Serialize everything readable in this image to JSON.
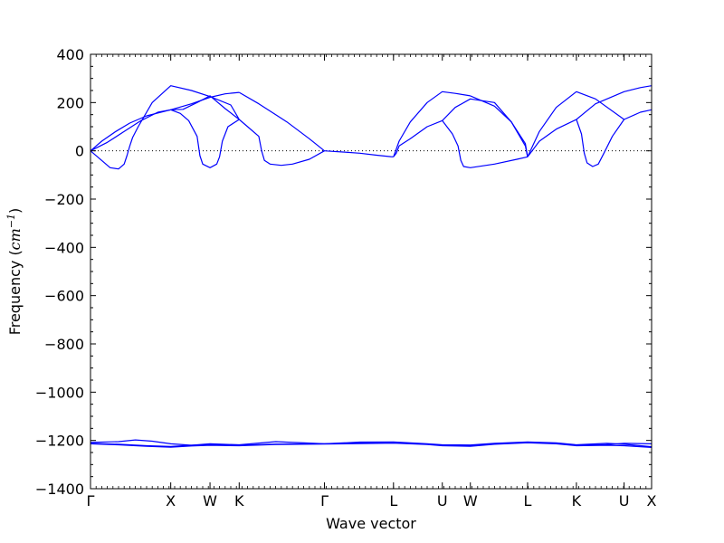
{
  "chart_data": {
    "type": "line",
    "title": "",
    "xlabel": "Wave vector",
    "ylabel": {
      "prefix": "Frequency (",
      "unit": "cm",
      "exponent": "−1",
      "suffix": ")"
    },
    "ylim": [
      -1400,
      400
    ],
    "yticks": [
      400,
      200,
      0,
      -200,
      -400,
      -600,
      -800,
      -1000,
      -1200,
      -1400
    ],
    "ytick_labels": [
      "400",
      "200",
      "0",
      "−200",
      "−400",
      "−600",
      "−800",
      "−1000",
      "−1200",
      "−1400"
    ],
    "xlim": [
      0,
      1
    ],
    "xticks": [
      {
        "label": "Γ",
        "x": 0.0
      },
      {
        "label": "X",
        "x": 0.143
      },
      {
        "label": "W",
        "x": 0.213
      },
      {
        "label": "K",
        "x": 0.265
      },
      {
        "label": "Γ",
        "x": 0.417
      },
      {
        "label": "L",
        "x": 0.54
      },
      {
        "label": "U",
        "x": 0.627
      },
      {
        "label": "W",
        "x": 0.677
      },
      {
        "label": "L",
        "x": 0.779
      },
      {
        "label": "K",
        "x": 0.866
      },
      {
        "label": "U",
        "x": 0.951
      },
      {
        "label": "X",
        "x": 1.0
      }
    ],
    "zero_line": {
      "y": 0,
      "style": "dotted"
    },
    "line_color": "#0000ff",
    "series": [
      {
        "x": [
          0,
          0.02,
          0.045,
          0.07,
          0.1,
          0.143,
          0.18,
          0.213,
          0.24,
          0.265
        ],
        "y": [
          0,
          40,
          80,
          115,
          145,
          170,
          195,
          222,
          236,
          242
        ]
      },
      {
        "x": [
          0.265,
          0.3,
          0.35,
          0.39,
          0.417
        ],
        "y": [
          242,
          195,
          120,
          50,
          0
        ]
      },
      {
        "x": [
          0,
          0.03,
          0.06,
          0.09,
          0.12,
          0.143,
          0.165,
          0.19,
          0.213,
          0.24,
          0.265
        ],
        "y": [
          0,
          35,
          80,
          125,
          160,
          170,
          172,
          200,
          228,
          175,
          130
        ]
      },
      {
        "x": [
          0,
          0.02,
          0.035,
          0.05,
          0.06,
          0.065,
          0.07,
          0.075,
          0.085,
          0.11,
          0.143,
          0.18,
          0.213,
          0.25,
          0.265
        ],
        "y": [
          0,
          -40,
          -70,
          -75,
          -55,
          -20,
          20,
          55,
          100,
          200,
          270,
          250,
          225,
          190,
          130
        ]
      },
      {
        "x": [
          0.143,
          0.16,
          0.175,
          0.19,
          0.195,
          0.2,
          0.213,
          0.225,
          0.23,
          0.235,
          0.245,
          0.265
        ],
        "y": [
          170,
          155,
          125,
          60,
          -20,
          -55,
          -70,
          -55,
          -25,
          40,
          100,
          130
        ]
      },
      {
        "x": [
          0.265,
          0.28,
          0.3,
          0.305,
          0.31,
          0.32,
          0.34,
          0.36,
          0.39,
          0.417
        ],
        "y": [
          130,
          100,
          60,
          0,
          -40,
          -55,
          -60,
          -55,
          -35,
          0
        ]
      },
      {
        "x": [
          0.417,
          0.45,
          0.48,
          0.51,
          0.535,
          0.54
        ],
        "y": [
          0,
          -5,
          -10,
          -18,
          -24,
          -25
        ]
      },
      {
        "x": [
          0.54,
          0.545,
          0.55,
          0.57,
          0.6,
          0.627,
          0.65,
          0.677,
          0.72,
          0.75,
          0.775,
          0.779
        ],
        "y": [
          -25,
          -10,
          20,
          50,
          100,
          125,
          180,
          215,
          200,
          120,
          20,
          -25
        ]
      },
      {
        "x": [
          0.54,
          0.55,
          0.57,
          0.6,
          0.627,
          0.65,
          0.677
        ],
        "y": [
          -25,
          40,
          120,
          200,
          245,
          238,
          228
        ]
      },
      {
        "x": [
          0.627,
          0.645,
          0.655,
          0.66,
          0.665,
          0.677,
          0.72,
          0.76,
          0.779
        ],
        "y": [
          125,
          70,
          20,
          -40,
          -65,
          -70,
          -55,
          -35,
          -25
        ]
      },
      {
        "x": [
          0.677,
          0.72,
          0.75,
          0.775,
          0.779
        ],
        "y": [
          228,
          185,
          120,
          30,
          -25
        ]
      },
      {
        "x": [
          0.779,
          0.8,
          0.83,
          0.866,
          0.9,
          0.951,
          0.98,
          1.0
        ],
        "y": [
          -25,
          80,
          180,
          245,
          215,
          130,
          160,
          170
        ]
      },
      {
        "x": [
          0.779,
          0.8,
          0.83,
          0.866,
          0.9,
          0.951,
          0.98,
          1.0
        ],
        "y": [
          -25,
          40,
          90,
          130,
          195,
          245,
          262,
          270
        ]
      },
      {
        "x": [
          0.866,
          0.875,
          0.88,
          0.885,
          0.895,
          0.905,
          0.915,
          0.93,
          0.951
        ],
        "y": [
          130,
          70,
          -10,
          -50,
          -65,
          -55,
          -10,
          60,
          130
        ]
      },
      {
        "x": [
          0,
          0.05,
          0.08,
          0.11,
          0.143,
          0.18,
          0.213,
          0.265,
          0.33,
          0.417,
          0.48,
          0.54,
          0.6,
          0.627,
          0.677,
          0.72,
          0.779,
          0.83,
          0.866,
          0.92,
          0.951,
          1.0
        ],
        "y": [
          -1208,
          -1205,
          -1198,
          -1203,
          -1214,
          -1220,
          -1214,
          -1218,
          -1205,
          -1214,
          -1207,
          -1206,
          -1214,
          -1218,
          -1219,
          -1212,
          -1206,
          -1210,
          -1218,
          -1212,
          -1216,
          -1226
        ]
      },
      {
        "x": [
          0,
          0.05,
          0.1,
          0.143,
          0.18,
          0.213,
          0.265,
          0.33,
          0.417,
          0.48,
          0.54,
          0.6,
          0.627,
          0.677,
          0.72,
          0.779,
          0.83,
          0.866,
          0.92,
          0.951,
          1.0
        ],
        "y": [
          -1212,
          -1216,
          -1222,
          -1225,
          -1220,
          -1217,
          -1220,
          -1215,
          -1214,
          -1211,
          -1209,
          -1215,
          -1220,
          -1221,
          -1214,
          -1208,
          -1212,
          -1220,
          -1217,
          -1212,
          -1214
        ]
      },
      {
        "x": [
          0,
          0.05,
          0.1,
          0.143,
          0.18,
          0.213,
          0.265,
          0.33,
          0.417,
          0.48,
          0.54,
          0.6,
          0.627,
          0.677,
          0.72,
          0.779,
          0.83,
          0.866,
          0.92,
          0.951,
          1.0
        ],
        "y": [
          -1214,
          -1218,
          -1224,
          -1228,
          -1223,
          -1220,
          -1222,
          -1217,
          -1215,
          -1213,
          -1211,
          -1217,
          -1222,
          -1224,
          -1216,
          -1210,
          -1214,
          -1222,
          -1220,
          -1222,
          -1229
        ]
      }
    ]
  }
}
